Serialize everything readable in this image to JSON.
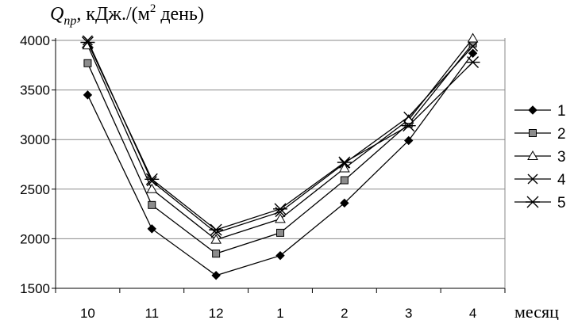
{
  "chart_data": {
    "type": "line",
    "ylabel": {
      "symbol": "Q",
      "subscript": "пр",
      "unit_before_power": ", кДж./(м",
      "power": "2",
      "unit_after_power": " день)"
    },
    "xlabel": "месяц",
    "categories": [
      "10",
      "11",
      "12",
      "1",
      "2",
      "3",
      "4"
    ],
    "ylim": [
      1500,
      4000
    ],
    "yticks": [
      "1500",
      "2000",
      "2500",
      "3000",
      "3500",
      "4000"
    ],
    "grid": true,
    "legend_position": "right",
    "series": [
      {
        "name": "1",
        "marker": "diamond-filled",
        "values": [
          3450,
          2100,
          1630,
          1830,
          2360,
          2990,
          3870
        ]
      },
      {
        "name": "2",
        "marker": "square-gray",
        "values": [
          3770,
          2340,
          1850,
          2060,
          2590,
          3160,
          3970
        ]
      },
      {
        "name": "3",
        "marker": "triangle-open",
        "values": [
          3950,
          2500,
          1990,
          2200,
          2710,
          3200,
          4020
        ]
      },
      {
        "name": "4",
        "marker": "x",
        "values": [
          4000,
          2580,
          2060,
          2270,
          2760,
          3230,
          3940
        ]
      },
      {
        "name": "5",
        "marker": "asterisk",
        "values": [
          3980,
          2600,
          2090,
          2300,
          2770,
          3140,
          3780
        ]
      }
    ]
  }
}
